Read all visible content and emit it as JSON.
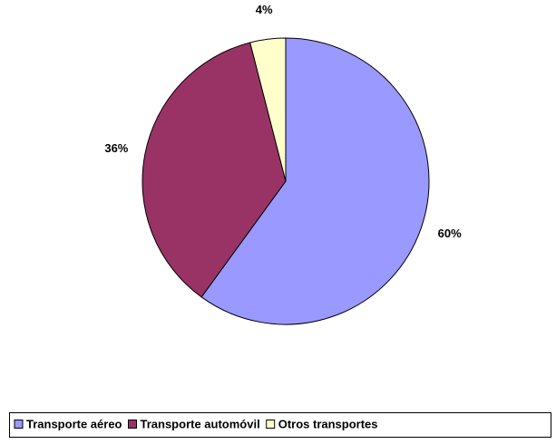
{
  "chart_data": {
    "type": "pie",
    "categories": [
      "Transporte aéreo",
      "Transporte automóvil",
      "Otros transportes"
    ],
    "values": [
      60,
      36,
      4
    ],
    "value_labels": [
      "60%",
      "36%",
      "4%"
    ],
    "colors": [
      "#9999ff",
      "#993366",
      "#ffffcc"
    ],
    "legend": "bottom"
  }
}
